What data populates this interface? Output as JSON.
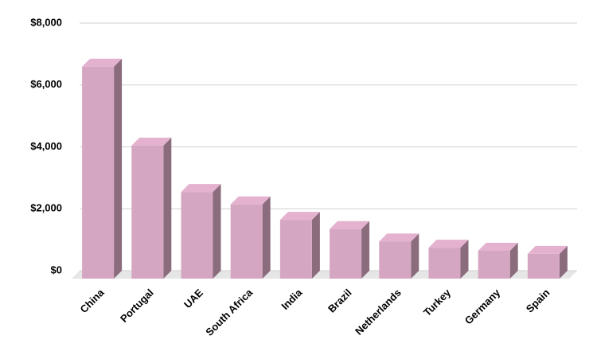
{
  "chart_data": {
    "type": "bar3d",
    "categories": [
      "China",
      "Portugal",
      "UAE",
      "South Africa",
      "India",
      "Brazil",
      "Netherlands",
      "Turkey",
      "Germany",
      "Spain"
    ],
    "values": [
      6850,
      4300,
      2800,
      2400,
      1900,
      1600,
      1200,
      1000,
      900,
      800
    ],
    "color": "#d5a6c1",
    "ylim": [
      0,
      8000
    ],
    "yticks": [
      {
        "value": 0,
        "label": "$0"
      },
      {
        "value": 2000,
        "label": "$2,000"
      },
      {
        "value": 4000,
        "label": "$4,000"
      },
      {
        "value": 6000,
        "label": "$6,000"
      },
      {
        "value": 8000,
        "label": "$8,000"
      }
    ],
    "grid": true
  }
}
